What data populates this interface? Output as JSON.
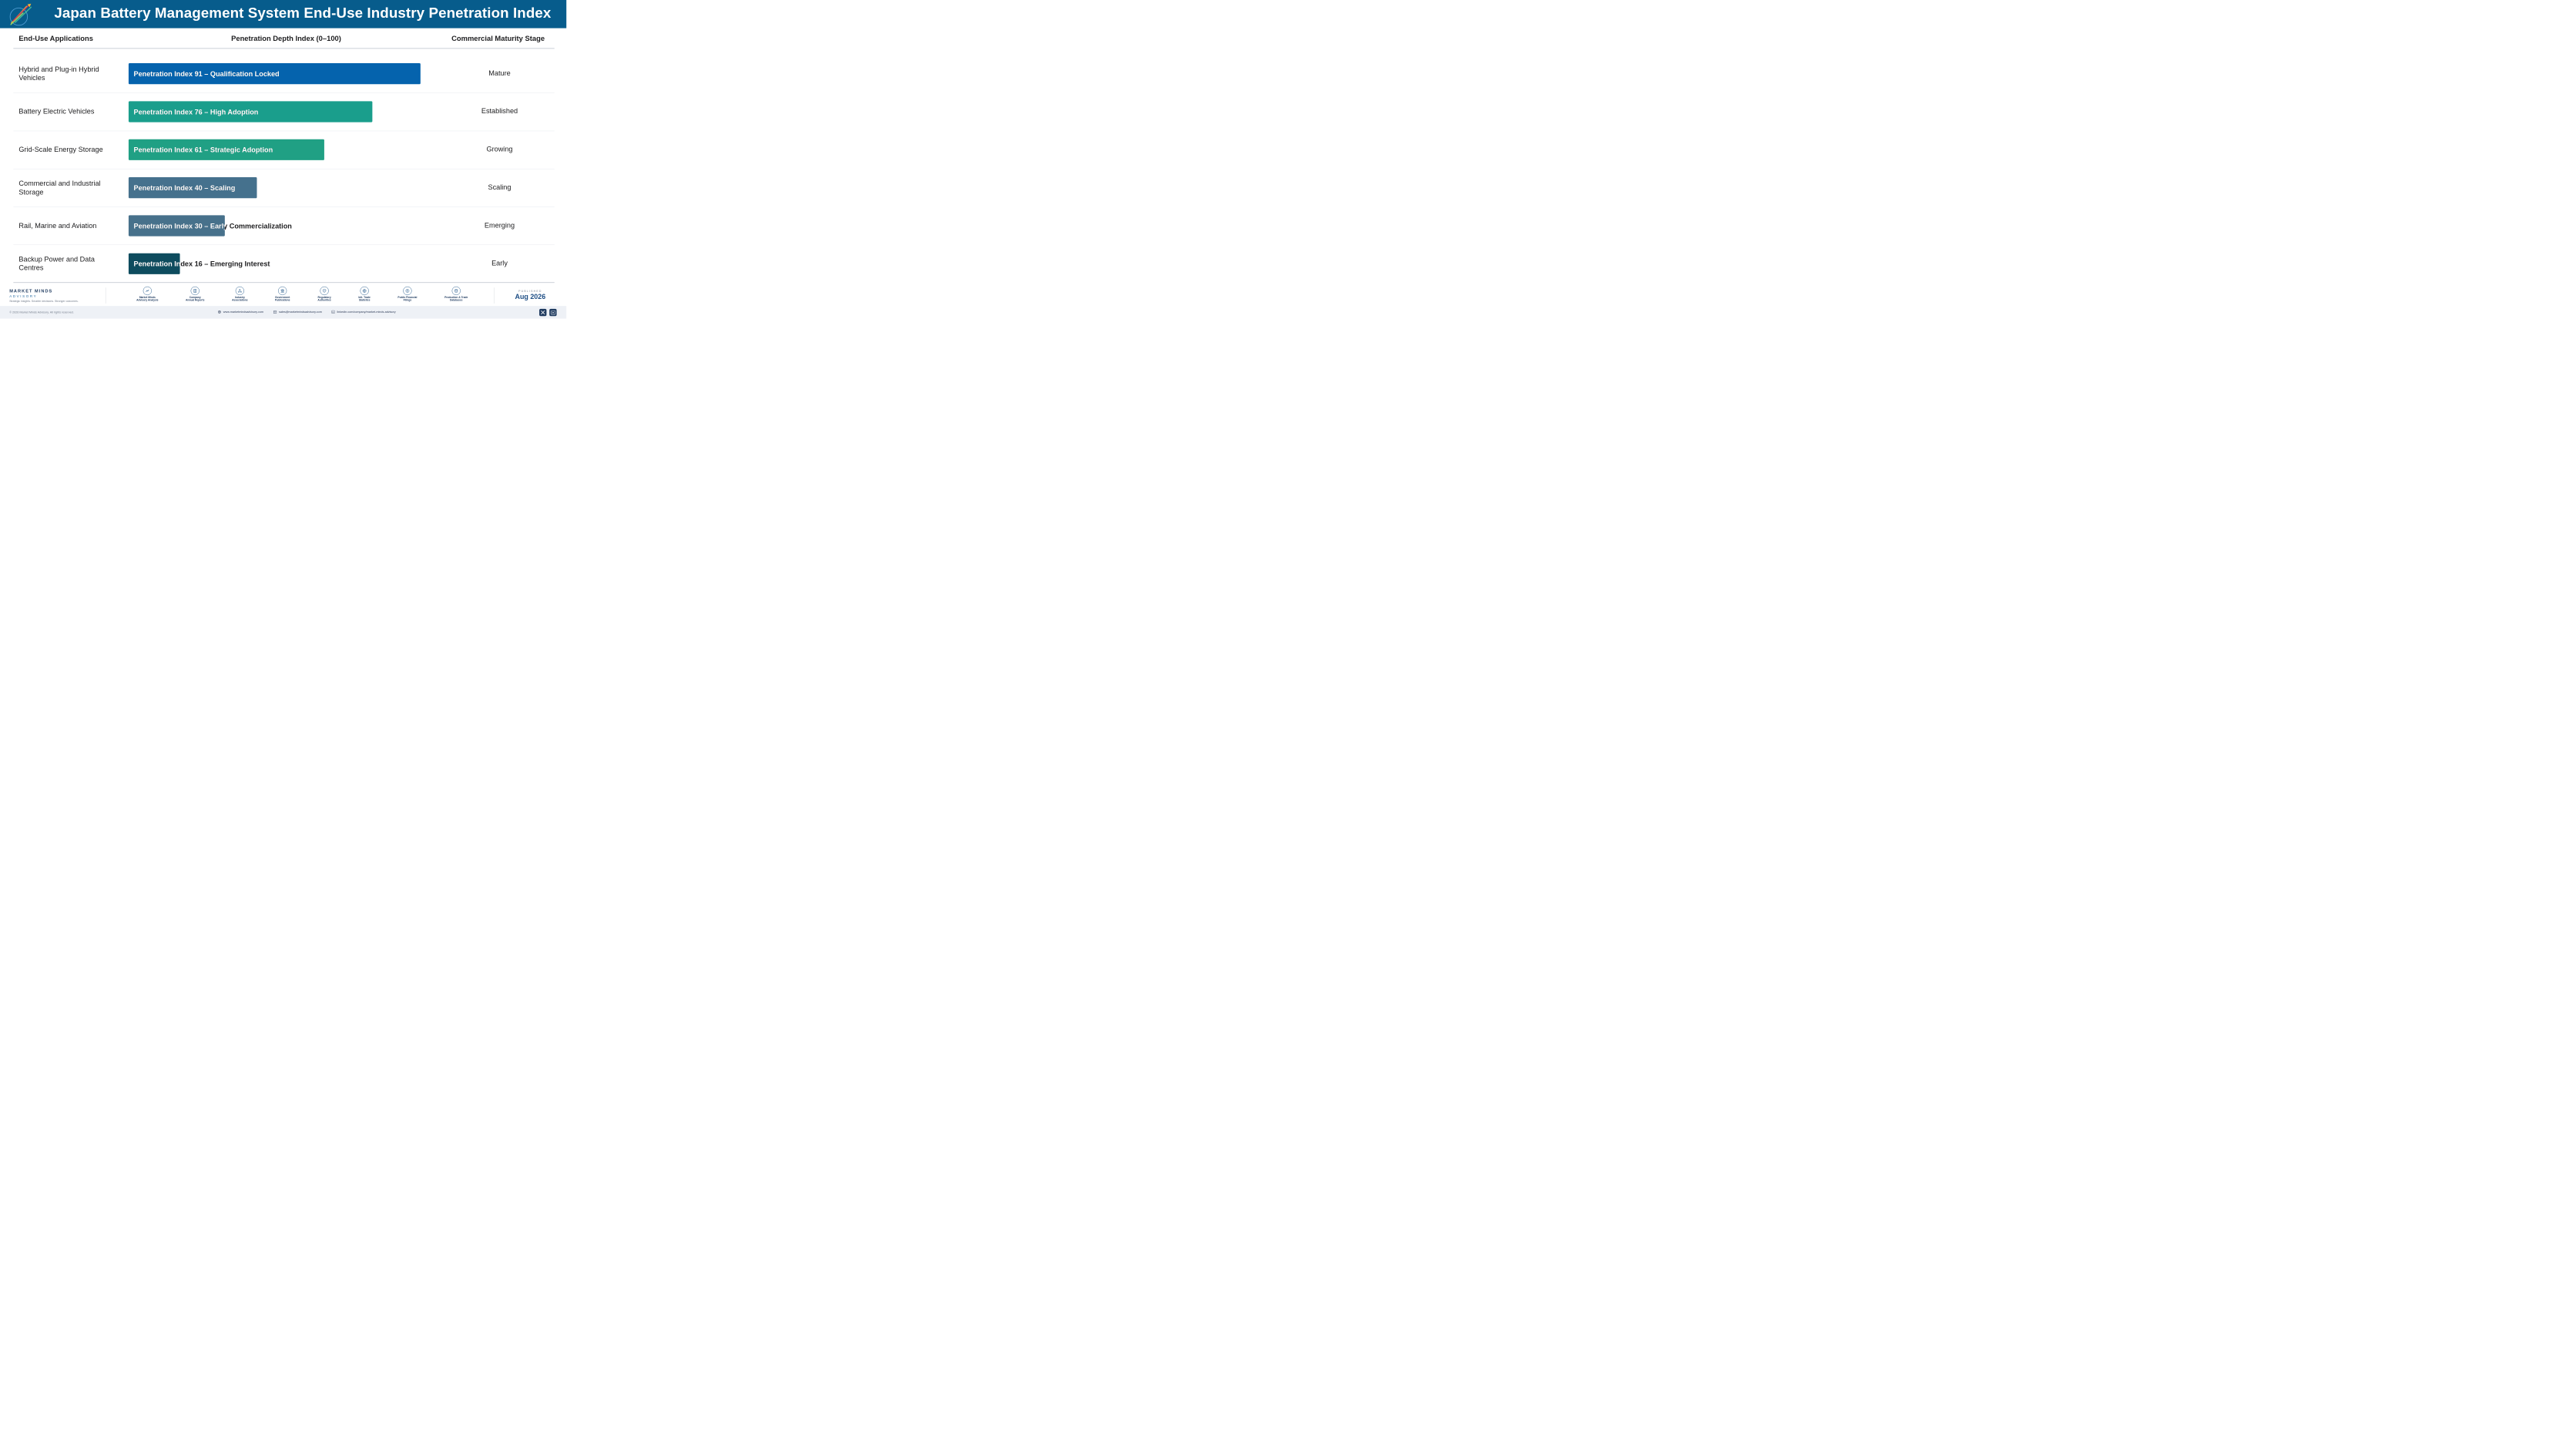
{
  "header": {
    "title": "Japan Battery Management System End-Use Industry Penetration Index",
    "logo_icon": "growth-arrows-logo"
  },
  "columns": {
    "applications": "End-Use Applications",
    "index": "Penetration Depth Index (0–100)",
    "stage": "Commercial Maturity Stage"
  },
  "chart_data": {
    "type": "bar",
    "orientation": "horizontal",
    "title": "Japan Battery Management System End-Use Industry Penetration Index",
    "xlabel": "Penetration Depth Index (0–100)",
    "xlim": [
      0,
      100
    ],
    "grid": false,
    "legend": "none",
    "categories": [
      "Hybrid and Plug-in Hybrid Vehicles",
      "Battery Electric Vehicles",
      "Grid-Scale Energy Storage",
      "Commercial and Industrial Storage",
      "Rail, Marine and Aviation",
      "Backup Power and Data Centres"
    ],
    "values": [
      91,
      76,
      61,
      40,
      30,
      16
    ],
    "bar_labels": [
      "Penetration Index 91 – Qualification Locked",
      "Penetration Index 76 – High Adoption",
      "Penetration Index 61 – Strategic Adoption",
      "Penetration Index 40 – Scaling",
      "Penetration Index 30 – Early Commercialization",
      "Penetration Index 16 – Emerging Interest"
    ],
    "stages": [
      "Mature",
      "Established",
      "Growing",
      "Scaling",
      "Emerging",
      "Early"
    ],
    "colors": [
      "#0563ad",
      "#1a9e8c",
      "#20a084",
      "#45718d",
      "#47718b",
      "#0e4c5e"
    ]
  },
  "footer": {
    "brand_name": "MARKET MINDS",
    "brand_sub": "ADVISORY",
    "tagline": "Strategic insights. Smarter decisions. Stronger outcomes.",
    "sources": [
      {
        "line1": "Market Minds",
        "line2": "Advisory Analysis",
        "icon": "trend-chart-icon"
      },
      {
        "line1": "Company",
        "line2": "Annual Reports",
        "icon": "document-icon"
      },
      {
        "line1": "Industry",
        "line2": "Associations",
        "icon": "network-icon"
      },
      {
        "line1": "Government",
        "line2": "Publications",
        "icon": "government-building-icon"
      },
      {
        "line1": "Regulatory",
        "line2": "Authorities",
        "icon": "shield-check-icon"
      },
      {
        "line1": "Intl. Trade",
        "line2": "Statistics",
        "icon": "globe-icon"
      },
      {
        "line1": "Public Financial",
        "line2": "Filings",
        "icon": "dollar-coin-icon"
      },
      {
        "line1": "Production & Trade",
        "line2": "Databases",
        "icon": "database-icon"
      }
    ],
    "published_label": "PUBLISHED",
    "published_date": "Aug 2026",
    "copyright": "© 2026 Market Minds Advisory. All rights reserved.",
    "website": "www.marketmindsadvisory.com",
    "email": "sales@marketmindsadvisory.com",
    "linkedin": "linkedin.com/company/market-minds-advisory"
  }
}
